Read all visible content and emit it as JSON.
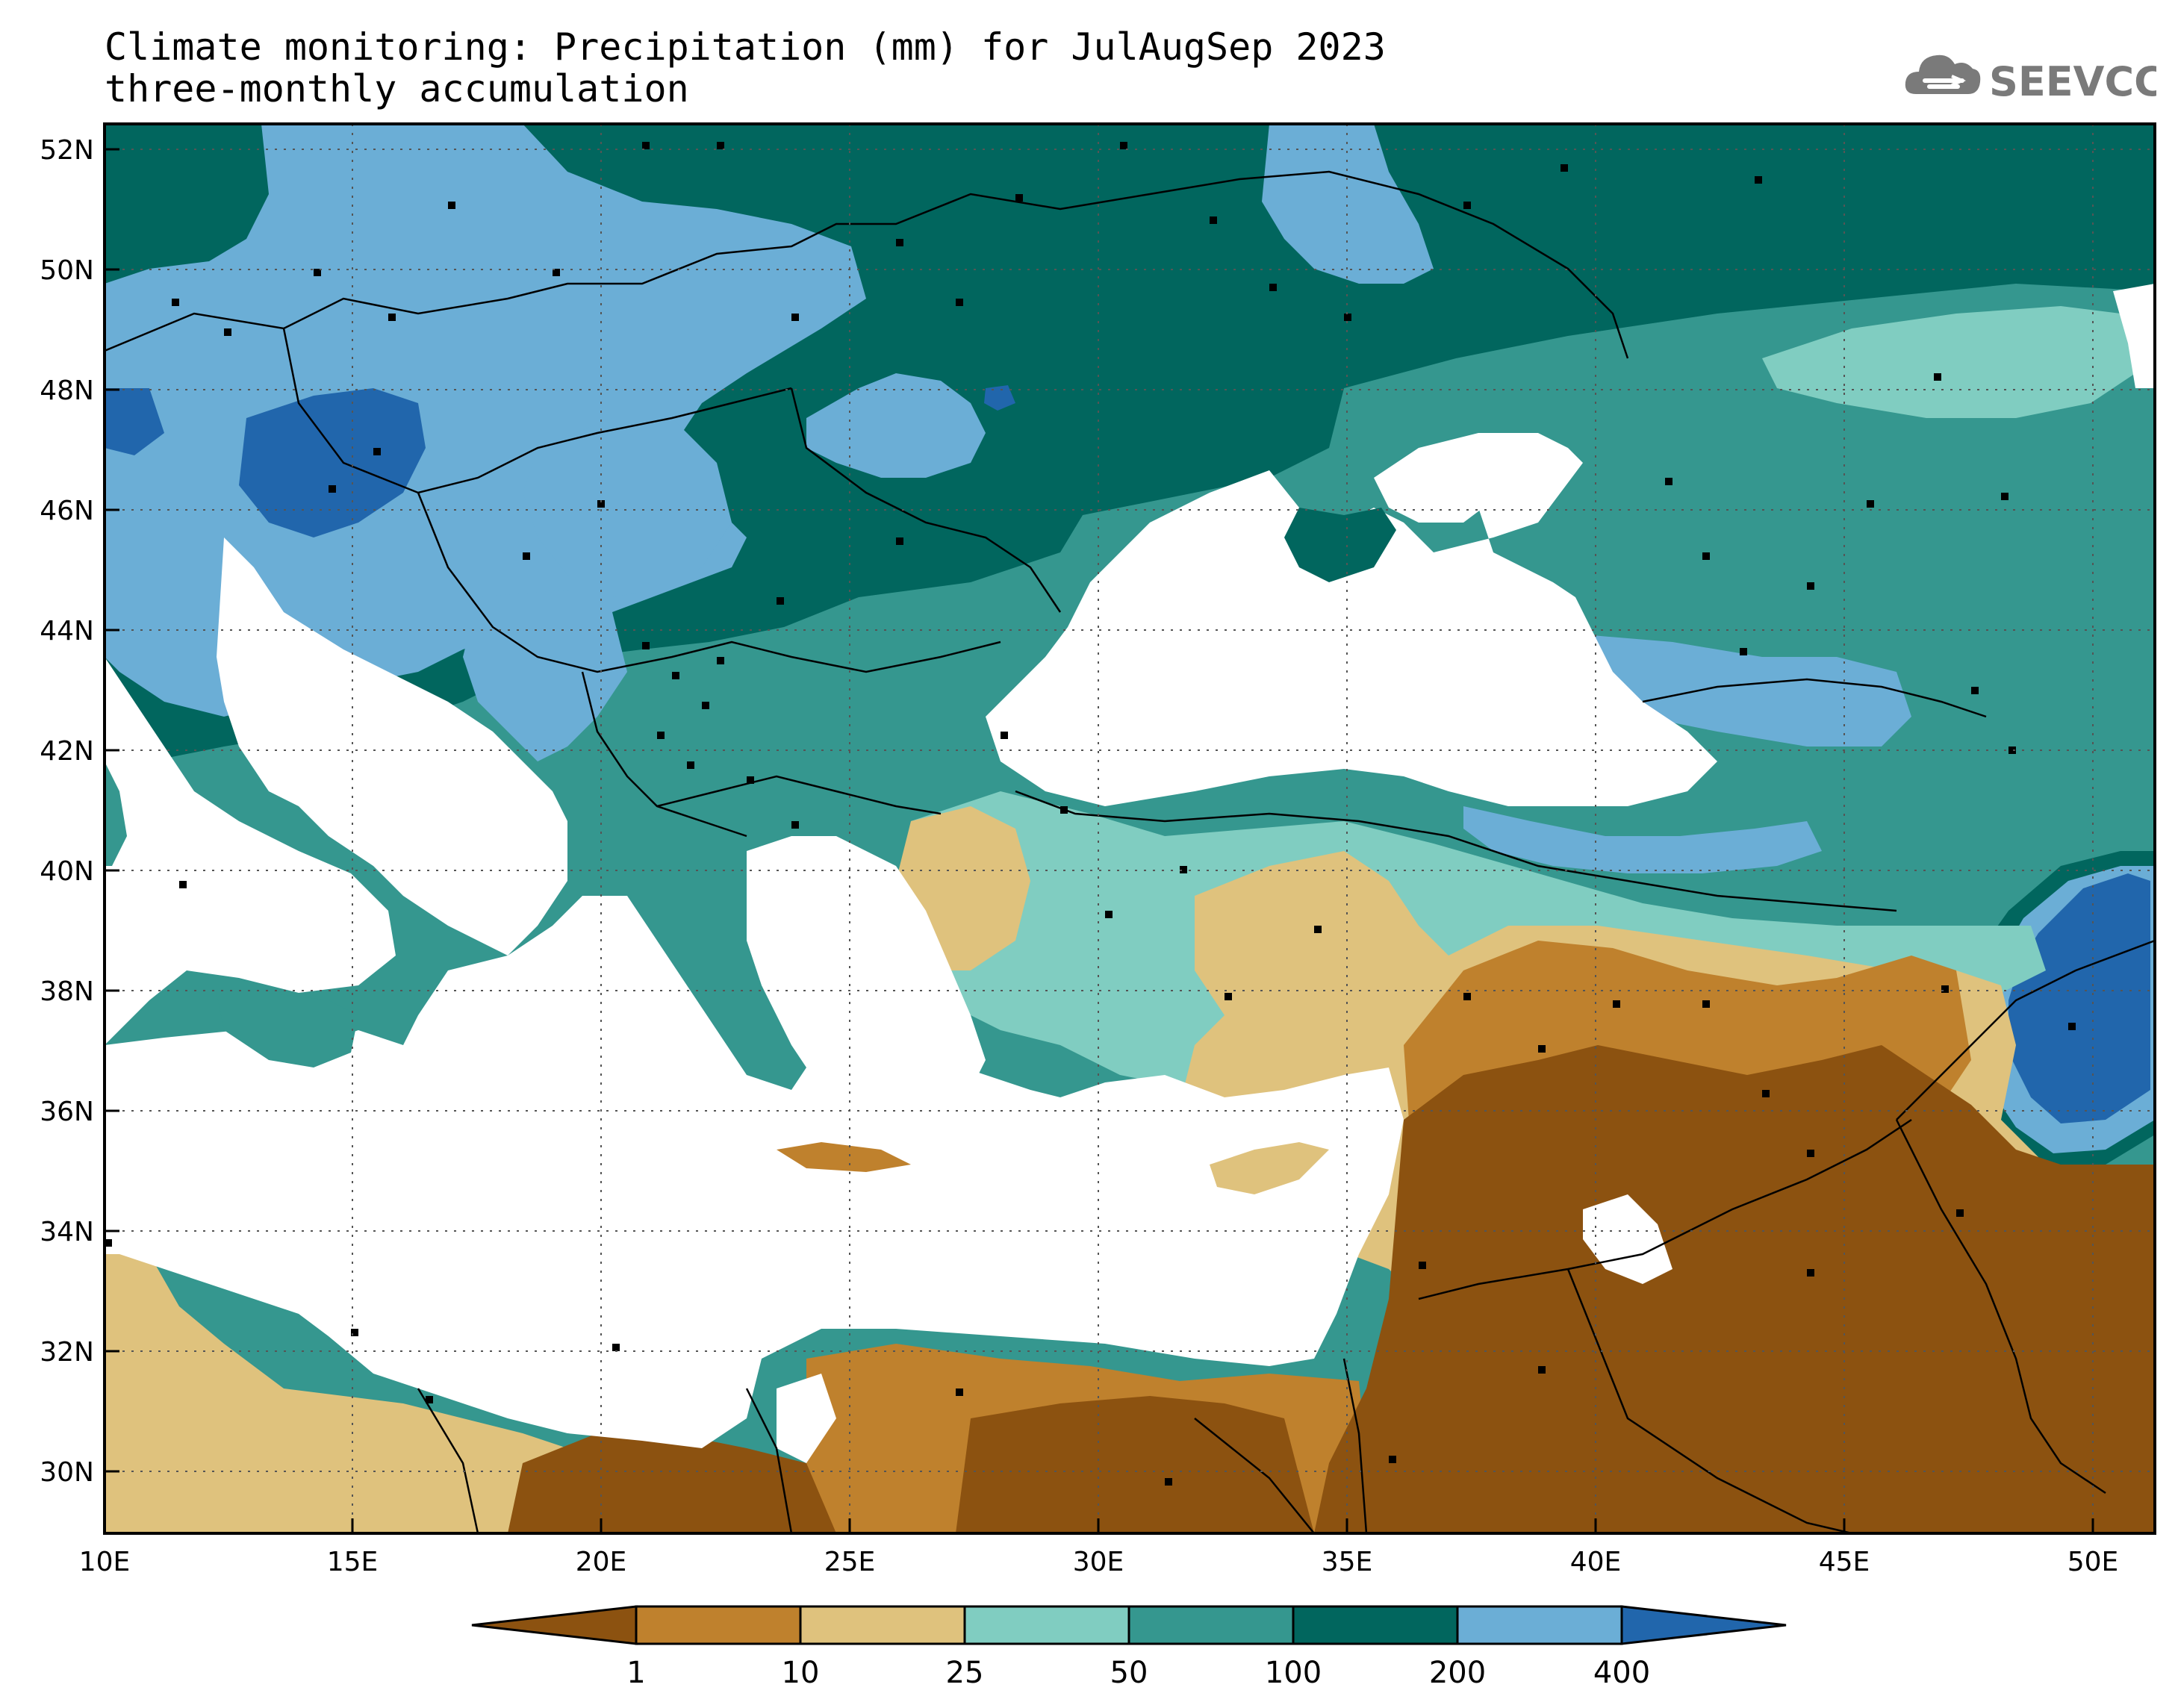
{
  "header": {
    "title_line1": "Climate monitoring: Precipitation (mm) for JulAugSep 2023",
    "title_line2": "three-monthly accumulation"
  },
  "logo": {
    "text": "SEEVCCC",
    "icon": "cloud-icon",
    "color": "#7a7a7a"
  },
  "map": {
    "region": {
      "lon_range": [
        10,
        51
      ],
      "lat_range": [
        29,
        52.5
      ]
    },
    "x_ticks": [
      "10E",
      "15E",
      "20E",
      "25E",
      "30E",
      "35E",
      "40E",
      "45E",
      "50E"
    ],
    "y_ticks": [
      "52N",
      "50N",
      "48N",
      "46N",
      "44N",
      "42N",
      "40N",
      "38N",
      "36N",
      "34N",
      "32N",
      "30N"
    ],
    "grid": "dotted",
    "sea_color": "#ffffff"
  },
  "legend": {
    "labels": [
      "1",
      "10",
      "25",
      "50",
      "100",
      "200",
      "400"
    ],
    "colors": [
      "#8c5210",
      "#bf812d",
      "#dfc27d",
      "#80cdc1",
      "#35978f",
      "#01665e",
      "#6baed6",
      "#2166ac"
    ]
  }
}
